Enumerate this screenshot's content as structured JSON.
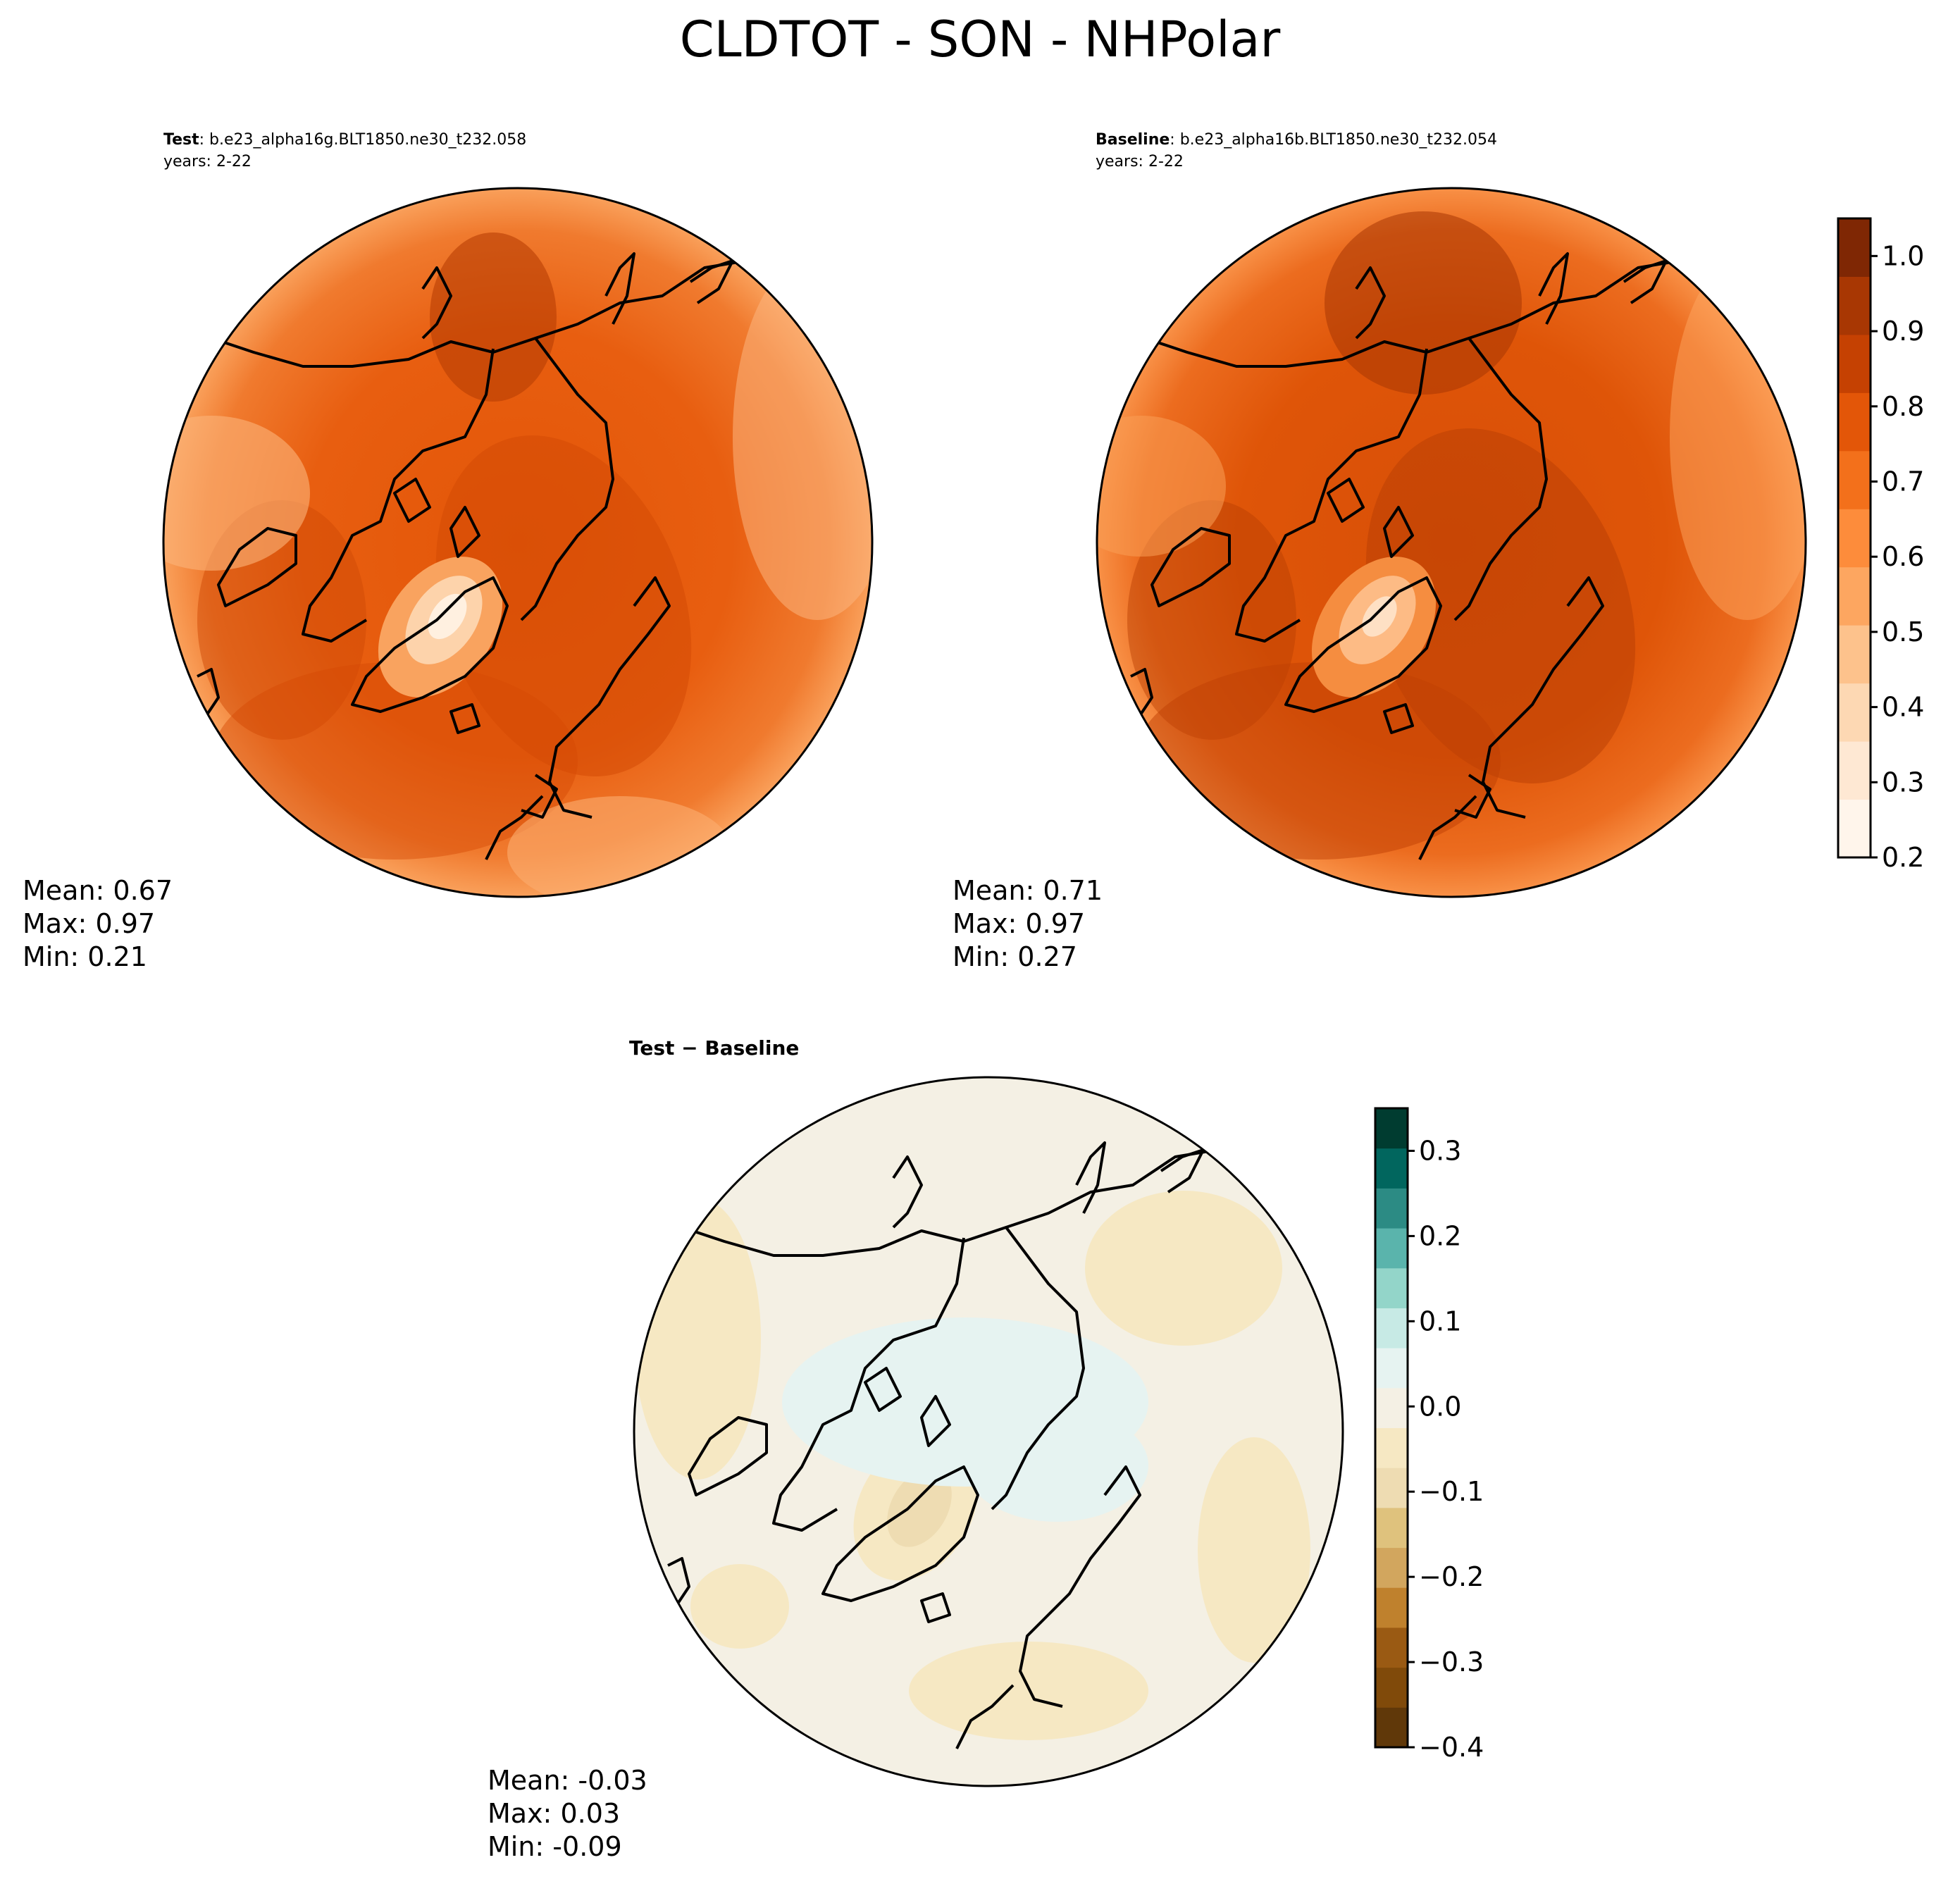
{
  "figure": {
    "title": "CLDTOT - SON - NHPolar"
  },
  "panels": {
    "test": {
      "label_bold": "Test",
      "case": ": b.e23_alpha16g.BLT1850.ne30_t232.058",
      "years": "years: 2-22",
      "stats": {
        "mean": "Mean:  0.67",
        "max": "Max:  0.97",
        "min": "Min:  0.21"
      }
    },
    "baseline": {
      "label_bold": "Baseline",
      "case": ": b.e23_alpha16b.BLT1850.ne30_t232.054",
      "years": "years: 2-22",
      "stats": {
        "mean": "Mean:  0.71",
        "max": "Max:  0.97",
        "min": "Min:  0.27"
      }
    },
    "diff": {
      "title": "Test − Baseline",
      "stats": {
        "mean": "Mean: -0.03",
        "max": "Max:  0.03",
        "min": "Min: -0.09"
      }
    }
  },
  "colorbars": {
    "main": {
      "ticks": [
        "0.2",
        "0.3",
        "0.4",
        "0.5",
        "0.6",
        "0.7",
        "0.8",
        "0.9",
        "1.0"
      ],
      "range": [
        0.2,
        1.05
      ],
      "colors": [
        "#fff5eb",
        "#fee8d3",
        "#fdd8b3",
        "#fdc28c",
        "#fda660",
        "#fd8c3b",
        "#f3701b",
        "#e35608",
        "#c54102",
        "#a83703",
        "#7f2704"
      ]
    },
    "diff": {
      "ticks": [
        "0.3",
        "0.2",
        "0.1",
        "0.0",
        "−0.1",
        "−0.2",
        "−0.3",
        "−0.4"
      ],
      "range": [
        -0.4,
        0.35
      ],
      "colors": [
        "#603809",
        "#804a0a",
        "#9a5a13",
        "#bf812d",
        "#d2a65e",
        "#dfc27d",
        "#eedcb2",
        "#f6e8c3",
        "#f4f0e4",
        "#e6f3f1",
        "#c7eae5",
        "#93d5c9",
        "#5ab4ac",
        "#2c8b84",
        "#01665e",
        "#003c30"
      ]
    }
  }
}
